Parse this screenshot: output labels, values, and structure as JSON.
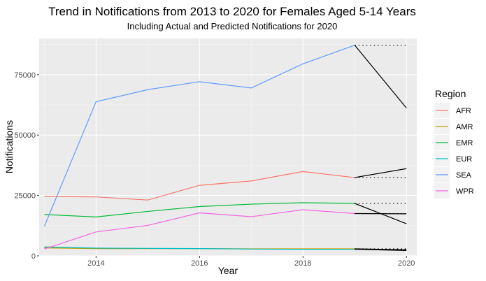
{
  "chart_data": {
    "type": "line",
    "title": "Trend in Notifications from 2013 to 2020 for Females Aged 5-14 Years",
    "subtitle": "Including Actual and Predicted Notifications for 2020",
    "xlabel": "Year",
    "ylabel": "Notifications",
    "xlim": [
      2012.9,
      2020.2
    ],
    "ylim": [
      0,
      90000
    ],
    "x_ticks": [
      2014,
      2016,
      2018,
      2020
    ],
    "x_tick_labels": [
      "2014",
      "2016",
      "2018",
      "2020"
    ],
    "y_ticks": [
      0,
      25000,
      50000,
      75000
    ],
    "y_tick_labels": [
      "0",
      "25000",
      "50000",
      "75000"
    ],
    "grid": true,
    "background": "#ebebeb",
    "legend": {
      "title": "Region",
      "placement": "right"
    },
    "series": [
      {
        "name": "AFR",
        "color": "#F8766D",
        "x": [
          2013,
          2014,
          2015,
          2016,
          2017,
          2018,
          2019
        ],
        "y": [
          24600,
          24400,
          23100,
          29200,
          31000,
          34900,
          32400
        ],
        "actual_2020": 36100,
        "predicted_2020": 32400
      },
      {
        "name": "AMR",
        "color": "#B79F00",
        "x": [
          2013,
          2014,
          2015,
          2016,
          2017,
          2018,
          2019
        ],
        "y": [
          3300,
          3000,
          3000,
          3000,
          2900,
          2900,
          2900
        ],
        "actual_2020": 2500,
        "predicted_2020": 2900
      },
      {
        "name": "EMR",
        "color": "#00BA38",
        "x": [
          2013,
          2014,
          2015,
          2016,
          2017,
          2018,
          2019
        ],
        "y": [
          17100,
          16100,
          18400,
          20400,
          21400,
          22000,
          21700
        ],
        "actual_2020": 13300,
        "predicted_2020": 21700
      },
      {
        "name": "EUR",
        "color": "#00BFC4",
        "x": [
          2013,
          2014,
          2015,
          2016,
          2017,
          2018,
          2019
        ],
        "y": [
          3700,
          3200,
          3100,
          3000,
          2800,
          2700,
          2700
        ],
        "actual_2020": 2200,
        "predicted_2020": 2700
      },
      {
        "name": "SEA",
        "color": "#619CFF",
        "x": [
          2013,
          2014,
          2015,
          2016,
          2017,
          2018,
          2019
        ],
        "y": [
          12200,
          63800,
          68800,
          72100,
          69500,
          79500,
          87200
        ],
        "actual_2020": 61200,
        "predicted_2020": 87200
      },
      {
        "name": "WPR",
        "color": "#F564E3",
        "x": [
          2013,
          2014,
          2015,
          2016,
          2017,
          2018,
          2019
        ],
        "y": [
          2800,
          9900,
          12600,
          17800,
          16200,
          19100,
          17500
        ],
        "actual_2020": 17400,
        "predicted_2020": 17500
      }
    ]
  }
}
